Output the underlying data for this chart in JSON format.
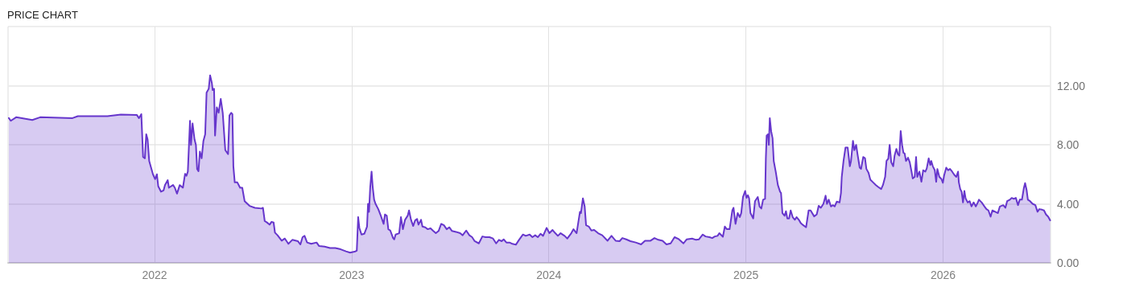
{
  "chart_data": {
    "type": "area",
    "title": "PRICE CHART",
    "color": "#6636cc",
    "grid": true,
    "xlim": [
      2021.257,
      2026.545
    ],
    "xticks": [
      2022,
      2023,
      2024,
      2025,
      2026
    ],
    "ylim": [
      0,
      16
    ],
    "yticks": [
      {
        "value": 0,
        "label": "0.00"
      },
      {
        "value": 4,
        "label": "4.00"
      },
      {
        "value": 8,
        "label": "8.00"
      },
      {
        "value": 12,
        "label": "12.00"
      }
    ],
    "x": [
      2021.261,
      2021.271,
      2021.298,
      2021.38,
      2021.42,
      2021.584,
      2021.611,
      2021.761,
      2021.829,
      2021.91,
      2021.921,
      2021.933,
      2021.942,
      2021.951,
      2021.958,
      2021.965,
      2021.973,
      2021.992,
      2022.003,
      2022.012,
      2022.019,
      2022.033,
      2022.046,
      2022.053,
      2022.067,
      2022.073,
      2022.094,
      2022.103,
      2022.114,
      2022.128,
      2022.144,
      2022.155,
      2022.162,
      2022.169,
      2022.18,
      2022.185,
      2022.193,
      2022.203,
      2022.21,
      2022.216,
      2022.223,
      2022.23,
      2022.239,
      2022.248,
      2022.257,
      2022.264,
      2022.275,
      2022.282,
      2022.291,
      2022.295,
      2022.302,
      2022.307,
      2022.316,
      2022.325,
      2022.336,
      2022.346,
      2022.359,
      2022.373,
      2022.38,
      2022.389,
      2022.395,
      2022.4,
      2022.407,
      2022.42,
      2022.434,
      2022.445,
      2022.457,
      2022.482,
      2022.509,
      2022.543,
      2022.55,
      2022.559,
      2022.57,
      2022.584,
      2022.593,
      2022.604,
      2022.611,
      2022.624,
      2022.645,
      2022.661,
      2022.679,
      2022.699,
      2022.727,
      2022.74,
      2022.751,
      2022.761,
      2022.774,
      2022.795,
      2022.822,
      2022.835,
      2022.863,
      2022.89,
      2022.917,
      2022.944,
      2022.971,
      2022.992,
      2023.019,
      2023.026,
      2023.033,
      2023.039,
      2023.05,
      2023.064,
      2023.078,
      2023.083,
      2023.088,
      2023.094,
      2023.101,
      2023.107,
      2023.114,
      2023.121,
      2023.135,
      2023.148,
      2023.162,
      2023.169,
      2023.178,
      2023.186,
      2023.196,
      2023.21,
      2023.216,
      2023.223,
      2023.241,
      2023.25,
      2023.26,
      2023.271,
      2023.284,
      2023.291,
      2023.301,
      2023.312,
      2023.322,
      2023.332,
      2023.339,
      2023.352,
      2023.359,
      2023.373,
      2023.386,
      2023.4,
      2023.414,
      2023.427,
      2023.441,
      2023.454,
      2023.468,
      2023.482,
      2023.495,
      2023.509,
      2023.529,
      2023.55,
      2023.563,
      2023.581,
      2023.597,
      2023.611,
      2023.624,
      2023.645,
      2023.663,
      2023.679,
      2023.699,
      2023.717,
      2023.733,
      2023.747,
      2023.761,
      2023.771,
      2023.785,
      2023.801,
      2023.815,
      2023.833,
      2023.849,
      2023.869,
      2023.883,
      2023.903,
      2023.917,
      2023.931,
      2023.944,
      2023.958,
      2023.971,
      2023.989,
      2024.003,
      2024.019,
      2024.033,
      2024.046,
      2024.06,
      2024.08,
      2024.094,
      2024.114,
      2024.125,
      2024.141,
      2024.158,
      2024.163,
      2024.173,
      2024.182,
      2024.189,
      2024.203,
      2024.216,
      2024.23,
      2024.25,
      2024.271,
      2024.298,
      2024.318,
      2024.339,
      2024.359,
      2024.373,
      2024.393,
      2024.414,
      2024.441,
      2024.468,
      2024.488,
      2024.516,
      2024.536,
      2024.556,
      2024.577,
      2024.597,
      2024.618,
      2024.638,
      2024.659,
      2024.683,
      2024.699,
      2024.727,
      2024.747,
      2024.761,
      2024.781,
      2024.795,
      2024.815,
      2024.829,
      2024.842,
      2024.856,
      2024.865,
      2024.883,
      2024.893,
      2024.903,
      2024.917,
      2024.931,
      2024.937,
      2024.947,
      2024.958,
      2024.969,
      2024.976,
      2024.985,
      2024.996,
      2025.003,
      2025.01,
      2025.016,
      2025.023,
      2025.037,
      2025.046,
      2025.06,
      2025.069,
      2025.078,
      2025.087,
      2025.097,
      2025.101,
      2025.105,
      2025.112,
      2025.116,
      2025.121,
      2025.128,
      2025.135,
      2025.141,
      2025.151,
      2025.162,
      2025.173,
      2025.178,
      2025.185,
      2025.196,
      2025.203,
      2025.21,
      2025.219,
      2025.227,
      2025.237,
      2025.248,
      2025.257,
      2025.268,
      2025.278,
      2025.291,
      2025.305,
      2025.318,
      2025.328,
      2025.346,
      2025.359,
      2025.369,
      2025.38,
      2025.393,
      2025.404,
      2025.411,
      2025.42,
      2025.431,
      2025.441,
      2025.45,
      2025.461,
      2025.475,
      2025.482,
      2025.486,
      2025.495,
      2025.505,
      2025.516,
      2025.527,
      2025.533,
      2025.543,
      2025.55,
      2025.559,
      2025.566,
      2025.577,
      2025.584,
      2025.595,
      2025.604,
      2025.611,
      2025.622,
      2025.631,
      2025.645,
      2025.659,
      2025.672,
      2025.686,
      2025.695,
      2025.706,
      2025.713,
      2025.722,
      2025.729,
      2025.737,
      2025.747,
      2025.754,
      2025.763,
      2025.771,
      2025.778,
      2025.785,
      2025.792,
      2025.799,
      2025.805,
      2025.812,
      2025.822,
      2025.831,
      2025.84,
      2025.846,
      2025.856,
      2025.863,
      2025.869,
      2025.88,
      2025.89,
      2025.899,
      2025.91,
      2025.917,
      2025.927,
      2025.935,
      2025.94,
      2025.948,
      2025.958,
      2025.965,
      2025.971,
      2025.981,
      2025.992,
      2025.999,
      2026.005,
      2026.016,
      2026.026,
      2026.035,
      2026.046,
      2026.057,
      2026.067,
      2026.076,
      2026.08,
      2026.087,
      2026.094,
      2026.101,
      2026.108,
      2026.114,
      2026.125,
      2026.135,
      2026.144,
      2026.155,
      2026.166,
      2026.176,
      2026.182,
      2026.196,
      2026.21,
      2026.22,
      2026.23,
      2026.241,
      2026.25,
      2026.264,
      2026.278,
      2026.288,
      2026.305,
      2026.316,
      2026.325,
      2026.339,
      2026.348,
      2026.359,
      2026.369,
      2026.38,
      2026.389,
      2026.4,
      2026.41,
      2026.416,
      2026.424,
      2026.43,
      2026.441,
      2026.454,
      2026.468,
      2026.479,
      2026.488,
      2026.502,
      2026.512,
      2026.522,
      2026.533,
      2026.543
    ],
    "values": [
      9.8,
      9.62,
      9.86,
      9.67,
      9.86,
      9.8,
      9.93,
      9.93,
      10.04,
      10.02,
      9.8,
      10.07,
      7.17,
      7.08,
      8.71,
      8.35,
      6.9,
      6.0,
      5.67,
      6.0,
      5.18,
      4.82,
      4.91,
      5.27,
      5.6,
      5.09,
      5.27,
      5.09,
      4.69,
      5.27,
      5.09,
      6.03,
      5.9,
      6.18,
      9.62,
      7.99,
      9.44,
      8.35,
      7.99,
      6.36,
      6.21,
      7.54,
      7.08,
      8.26,
      8.71,
      11.52,
      11.79,
      12.7,
      12.16,
      11.7,
      11.79,
      8.62,
      10.53,
      10.16,
      11.1,
      10.16,
      7.63,
      7.36,
      9.98,
      10.16,
      10.07,
      6.54,
      5.45,
      5.45,
      5.09,
      5.09,
      4.18,
      3.86,
      3.73,
      3.68,
      3.73,
      2.83,
      2.74,
      2.59,
      2.77,
      2.74,
      2.05,
      1.87,
      1.5,
      1.65,
      1.29,
      1.56,
      1.47,
      1.25,
      1.74,
      1.83,
      1.38,
      1.29,
      1.38,
      1.14,
      1.1,
      1.01,
      1.01,
      0.92,
      0.78,
      0.69,
      0.78,
      0.83,
      3.1,
      2.37,
      1.92,
      1.97,
      2.46,
      4.0,
      3.46,
      5.09,
      6.18,
      5.09,
      4.28,
      4.0,
      3.64,
      3.19,
      2.64,
      3.28,
      3.19,
      2.28,
      2.19,
      1.68,
      1.59,
      1.92,
      2.01,
      3.1,
      2.28,
      2.92,
      3.19,
      3.55,
      2.92,
      2.5,
      2.88,
      2.97,
      2.59,
      2.92,
      2.46,
      2.41,
      2.28,
      2.34,
      2.16,
      2.01,
      2.16,
      2.64,
      2.55,
      2.28,
      2.41,
      2.16,
      2.1,
      2.01,
      1.87,
      2.19,
      1.87,
      1.74,
      1.47,
      1.32,
      1.79,
      1.74,
      1.74,
      1.65,
      1.32,
      1.56,
      1.47,
      1.59,
      1.38,
      1.38,
      1.29,
      1.23,
      1.56,
      1.92,
      1.83,
      1.92,
      1.74,
      1.87,
      1.74,
      1.97,
      1.83,
      2.37,
      2.01,
      2.23,
      2.01,
      1.83,
      2.01,
      1.83,
      1.65,
      2.01,
      2.28,
      2.01,
      3.46,
      3.37,
      4.37,
      3.82,
      2.55,
      2.46,
      2.19,
      2.23,
      2.01,
      1.87,
      1.5,
      1.83,
      1.5,
      1.47,
      1.68,
      1.59,
      1.47,
      1.38,
      1.25,
      1.5,
      1.5,
      1.68,
      1.56,
      1.5,
      1.25,
      1.32,
      1.74,
      1.61,
      1.32,
      1.59,
      1.65,
      1.56,
      1.59,
      1.92,
      1.79,
      1.74,
      1.68,
      1.79,
      1.83,
      2.01,
      1.77,
      2.46,
      2.28,
      2.28,
      3.55,
      3.73,
      2.64,
      3.37,
      3.1,
      3.37,
      4.46,
      4.87,
      4.4,
      4.58,
      4.37,
      3.37,
      3.01,
      4.18,
      4.46,
      3.82,
      3.68,
      4.28,
      4.33,
      7.08,
      8.62,
      8.71,
      7.99,
      9.8,
      8.9,
      8.44,
      6.9,
      6.18,
      5.27,
      4.82,
      4.73,
      3.37,
      3.19,
      3.5,
      3.01,
      3.01,
      3.55,
      3.1,
      2.92,
      3.1,
      2.92,
      2.7,
      2.55,
      2.41,
      3.55,
      3.55,
      3.15,
      3.28,
      3.86,
      3.73,
      4.0,
      4.55,
      4.0,
      4.28,
      3.82,
      3.91,
      3.82,
      4.15,
      4.09,
      4.73,
      5.82,
      6.9,
      7.81,
      7.81,
      6.54,
      6.9,
      8.26,
      7.63,
      7.99,
      7.36,
      6.45,
      6.36,
      7.17,
      7.08,
      6.36,
      6.09,
      5.63,
      5.45,
      5.27,
      5.13,
      5.0,
      5.27,
      5.82,
      6.9,
      7.05,
      7.99,
      6.81,
      6.54,
      7.26,
      7.72,
      7.36,
      7.26,
      8.93,
      7.99,
      7.45,
      7.41,
      6.9,
      7.12,
      6.81,
      6.18,
      5.72,
      5.82,
      7.17,
      5.82,
      6.18,
      5.49,
      6.27,
      6.18,
      6.39,
      7.08,
      6.63,
      6.9,
      6.54,
      6.27,
      5.49,
      6.36,
      5.82,
      5.67,
      5.42,
      5.9,
      6.45,
      6.27,
      6.36,
      6.18,
      5.96,
      5.82,
      6.18,
      5.45,
      5.0,
      4.82,
      4.09,
      4.87,
      4.37,
      4.09,
      4.18,
      3.82,
      4.09,
      3.82,
      4.09,
      4.28,
      4.09,
      3.82,
      3.64,
      3.55,
      3.13,
      3.55,
      3.46,
      3.37,
      3.82,
      3.91,
      3.73,
      4.18,
      4.28,
      4.4,
      4.33,
      4.4,
      3.91,
      4.28,
      4.28,
      5.09,
      5.4,
      4.91,
      4.28,
      4.18,
      4.0,
      3.91,
      3.46,
      3.64,
      3.6,
      3.55,
      3.28,
      3.13,
      2.88
    ]
  }
}
